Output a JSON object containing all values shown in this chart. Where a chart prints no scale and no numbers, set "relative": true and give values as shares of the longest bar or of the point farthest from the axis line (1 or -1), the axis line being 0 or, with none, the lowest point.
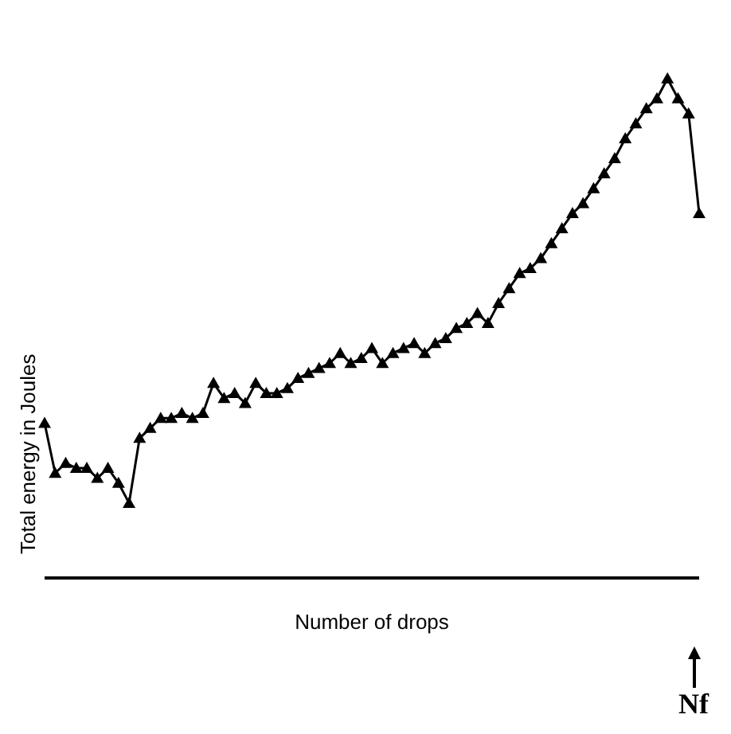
{
  "chart_data": {
    "type": "line",
    "relative": true,
    "xlabel": "Number of drops",
    "ylabel": "Total energy in Joules",
    "marker": "triangle",
    "line_style": "solid",
    "categories": [
      null,
      null,
      null,
      null,
      null,
      null,
      null,
      null,
      null,
      null,
      null,
      null,
      null,
      null,
      null,
      null,
      null,
      null,
      null,
      null,
      null,
      null,
      null,
      null,
      null,
      null,
      null,
      null,
      null,
      null,
      null,
      null,
      null,
      null,
      null,
      null,
      null,
      null,
      null,
      null,
      null,
      null,
      null,
      null,
      null,
      null,
      null,
      null,
      null,
      null,
      null,
      null,
      null,
      null,
      null,
      null,
      null,
      null,
      null,
      null,
      null,
      null,
      null
    ],
    "series": [
      {
        "color": "#000000",
        "values": [
          0.31,
          0.21,
          0.23,
          0.22,
          0.22,
          0.2,
          0.22,
          0.19,
          0.15,
          0.28,
          0.3,
          0.32,
          0.32,
          0.33,
          0.32,
          0.33,
          0.39,
          0.36,
          0.37,
          0.35,
          0.39,
          0.37,
          0.37,
          0.38,
          0.4,
          0.41,
          0.42,
          0.43,
          0.45,
          0.43,
          0.44,
          0.46,
          0.43,
          0.45,
          0.46,
          0.47,
          0.45,
          0.47,
          0.48,
          0.5,
          0.51,
          0.53,
          0.51,
          0.55,
          0.58,
          0.61,
          0.62,
          0.64,
          0.67,
          0.7,
          0.73,
          0.75,
          0.78,
          0.81,
          0.84,
          0.88,
          0.91,
          0.94,
          0.96,
          1,
          0.96,
          0.93,
          0.73
        ]
      }
    ],
    "annotations": [
      "Nf"
    ]
  }
}
